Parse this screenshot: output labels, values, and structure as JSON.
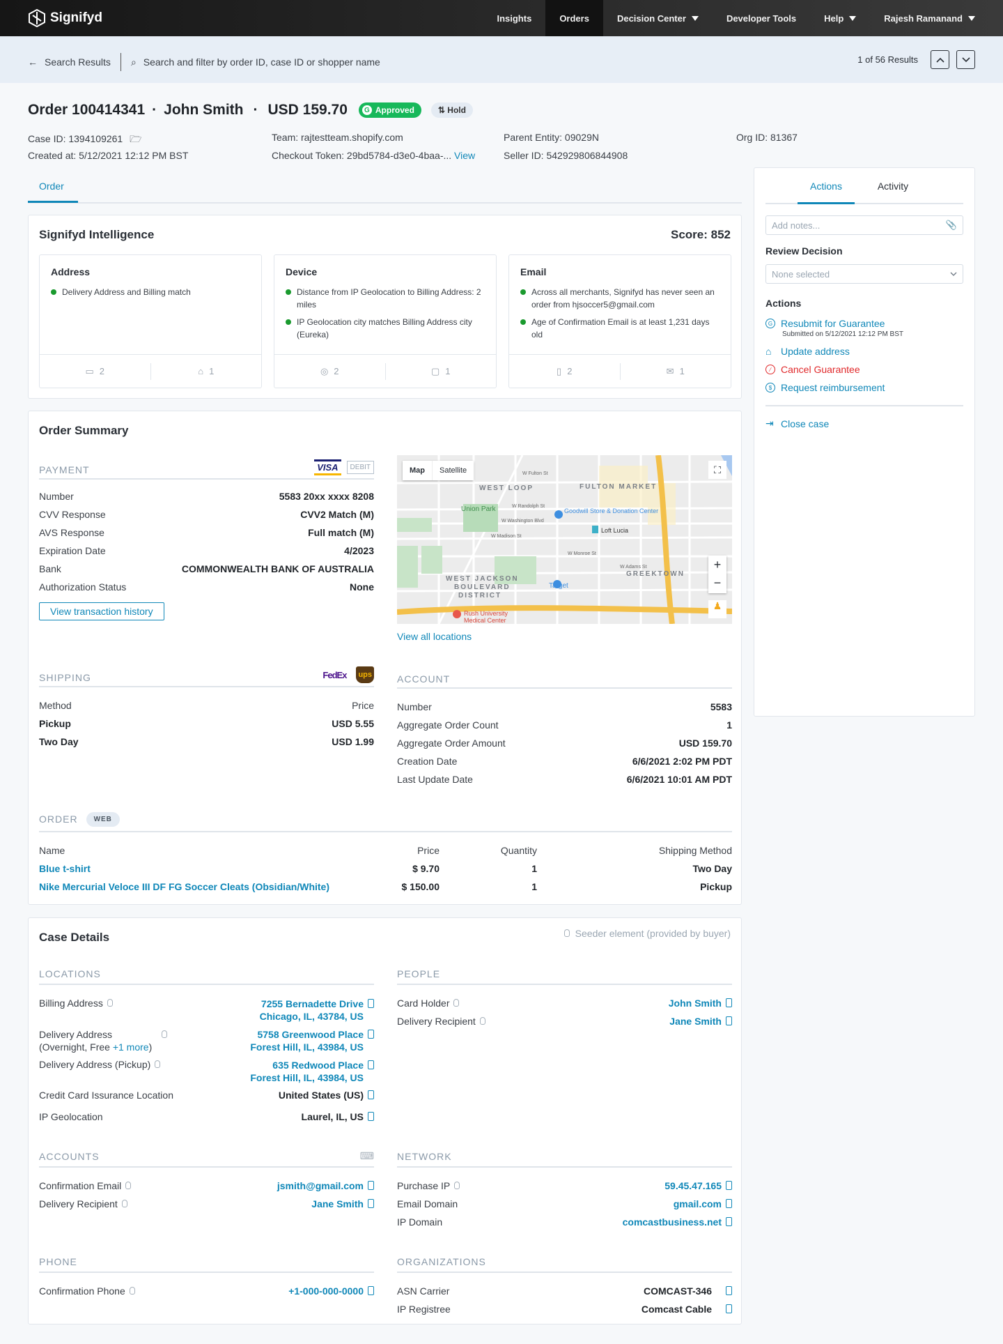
{
  "nav": {
    "brand": "Signifyd",
    "items": [
      "Insights",
      "Orders",
      "Decision Center",
      "Developer Tools",
      "Help",
      "Rajesh Ramanand"
    ]
  },
  "subheader": {
    "back": "Search Results",
    "search_placeholder": "Search and filter by order ID, case ID or shopper name",
    "results": "1 of 56 Results"
  },
  "order": {
    "title": "Order 100414341",
    "customer": "John Smith",
    "amount": "USD 159.70",
    "status": "Approved",
    "hold": "Hold",
    "case_id": "Case ID:  1394109261",
    "created": "Created at:  5/12/2021 12:12 PM BST",
    "team": "Team:  rajtestteam.shopify.com",
    "checkout": "Checkout Token:  29bd5784-d3e0-4baa-...",
    "view": "View",
    "parent": "Parent Entity:  09029N",
    "seller": "Seller ID:  542929806844908",
    "org": "Org ID: 81367",
    "tab": "Order"
  },
  "intel": {
    "title": "Signifyd Intelligence",
    "score": "Score: 852",
    "cards": [
      {
        "title": "Address",
        "items": [
          "Delivery Address and Billing match"
        ],
        "f1": "2",
        "f2": "1"
      },
      {
        "title": "Device",
        "items": [
          "Distance from IP Geolocation to Billing Address: 2 miles",
          "IP Geolocation city matches Billing Address city (Eureka)"
        ],
        "f1": "2",
        "f2": "1"
      },
      {
        "title": "Email",
        "items": [
          "Across all merchants, Signifyd has never seen an order from hjsoccer5@gmail.com",
          "Age of Confirmation Email is at least 1,231 days old"
        ],
        "f1": "2",
        "f2": "1"
      }
    ]
  },
  "summary": {
    "title": "Order Summary",
    "payment": "Payment",
    "visa": "VISA",
    "debit": "DEBIT",
    "payment_rows": [
      [
        "Number",
        "5583 20xx xxxx 8208"
      ],
      [
        "CVV Response",
        "CVV2 Match (M)"
      ],
      [
        "AVS Response",
        "Full match (M)"
      ],
      [
        "Expiration Date",
        "4/2023"
      ],
      [
        "Bank",
        "COMMONWEALTH BANK OF AUSTRALIA"
      ],
      [
        "Authorization Status",
        "None"
      ]
    ],
    "txn_button": "View transaction history",
    "map": {
      "map": "Map",
      "satellite": "Satellite",
      "labels": [
        "WEST LOOP",
        "FULTON MARKET",
        "Union Park",
        "Goodwill Store & Donation Center",
        "Loft Lucia",
        "GREEKTOWN",
        "WEST JACKSON",
        "BOULEVARD",
        "DISTRICT",
        "Target",
        "Rush University",
        "Medical Center",
        "W Fulton St",
        "W Randolph St",
        "W Washington Blvd",
        "W Madison St",
        "W Monroe St",
        "W Adams St"
      ]
    },
    "view_locations": "View all locations",
    "shipping": "Shipping",
    "fedex": "FedEx",
    "ups": "ups",
    "ship_header": [
      "Method",
      "Price"
    ],
    "ship_rows": [
      [
        "Pickup",
        "USD 5.55"
      ],
      [
        "Two Day",
        "USD 1.99"
      ]
    ],
    "account": "Account",
    "account_rows": [
      [
        "Number",
        "5583"
      ],
      [
        "Aggregate Order Count",
        "1"
      ],
      [
        "Aggregate Order Amount",
        "USD 159.70"
      ],
      [
        "Creation Date",
        "6/6/2021 2:02 PM PDT"
      ],
      [
        "Last Update Date",
        "6/6/2021 10:01 AM PDT"
      ]
    ],
    "order_label": "Order",
    "web": "WEB",
    "order_header": [
      "Name",
      "Price",
      "Quantity",
      "Shipping Method"
    ],
    "items": [
      [
        "Blue t-shirt",
        "$ 9.70",
        "1",
        "Two Day"
      ],
      [
        "Nike Mercurial Veloce III DF FG Soccer Cleats (Obsidian/White)",
        "$ 150.00",
        "1",
        "Pickup"
      ]
    ]
  },
  "case": {
    "title": "Case Details",
    "seeder": "Seeder element (provided by buyer)",
    "locations": "Locations",
    "billing": "Billing Address",
    "billing_v": [
      "7255 Bernadette Drive",
      "Chicago, IL, 43784, US"
    ],
    "delivery": "Delivery Address",
    "delivery_sub": "(Overnight, Free ",
    "more": "+1 more",
    "delivery_v": [
      "5758 Greenwood Place",
      "Forest Hill, IL, 43984, US"
    ],
    "pickup": "Delivery Address (Pickup)",
    "pickup_v": [
      "635 Redwood Place",
      "Forest Hill, IL, 43984, US"
    ],
    "cc": "Credit Card Issurance Location",
    "cc_v": "United States (US)",
    "ipgeo": "IP Geolocation",
    "ipgeo_v": "Laurel, IL, US",
    "people": "People",
    "card_holder": "Card Holder",
    "card_holder_v": "John Smith",
    "recipient": "Delivery Recipient",
    "recipient_v": "Jane Smith",
    "accounts": "Accounts",
    "conf_email": "Confirmation Email",
    "conf_email_v": "jsmith@gmail.com",
    "acc_recipient": "Delivery Recipient",
    "acc_recipient_v": "Jane Smith",
    "network": "Network",
    "purchase_ip": "Purchase IP",
    "purchase_ip_v": "59.45.47.165",
    "email_domain": "Email Domain",
    "email_domain_v": "gmail.com",
    "ip_domain": "IP Domain",
    "ip_domain_v": "comcastbusiness.net",
    "phone": "Phone",
    "conf_phone": "Confirmation Phone",
    "conf_phone_v": "+1-000-000-0000",
    "orgs": "Organizations",
    "asn": "ASN Carrier",
    "asn_v": "COMCAST-346",
    "registree": "IP Registree",
    "registree_v": "Comcast Cable"
  },
  "panel": {
    "tabs": [
      "Actions",
      "Activity"
    ],
    "notes_placeholder": "Add notes...",
    "review_label": "Review Decision",
    "review_value": "None selected",
    "actions_label": "Actions",
    "resubmit": "Resubmit for Guarantee",
    "submitted": "Submitted on 5/12/2021 12:12 PM BST",
    "update": "Update address",
    "cancel": "Cancel Guarantee",
    "reimburse": "Request reimbursement",
    "close": "Close case"
  }
}
